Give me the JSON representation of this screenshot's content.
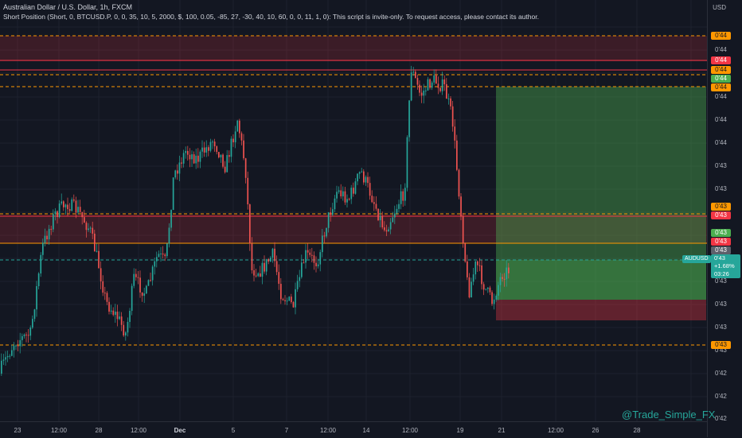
{
  "header": {
    "title": "Australian Dollar / U.S. Dollar, 1h, FXCM",
    "strategy": "Short Position (Short, 0, BTCUSD.P, 0, 0, 35, 10, 5, 2000, $, 100, 0.05, -85, 27, -30, 40, 10, 60, 0, 0, 11, 1, 0): This script is invite-only. To request access, please contact its author."
  },
  "price_axis": {
    "currency": "USD",
    "ticks": [
      "0'44",
      "0'44",
      "0'44",
      "0'44",
      "0'43",
      "0'43",
      "0'43",
      "0'43",
      "0'43",
      "0'43",
      "0'42",
      "0'42",
      "0'42"
    ],
    "tags": [
      {
        "text": "0'44",
        "bg": "#ff9800",
        "fg": "#131722"
      },
      {
        "text": "0'44",
        "bg": "#f23645",
        "fg": "#ffffff"
      },
      {
        "text": "0'44",
        "bg": "#ff9800",
        "fg": "#131722"
      },
      {
        "text": "0'44",
        "bg": "#4caf50",
        "fg": "#ffffff"
      },
      {
        "text": "0'44",
        "bg": "#ff9800",
        "fg": "#131722"
      },
      {
        "text": "0'43",
        "bg": "#ff9800",
        "fg": "#131722"
      },
      {
        "text": "0'43",
        "bg": "#f23645",
        "fg": "#ffffff"
      },
      {
        "text": "0'43",
        "bg": "#4caf50",
        "fg": "#ffffff"
      },
      {
        "text": "0'43",
        "bg": "#f23645",
        "fg": "#ffffff"
      },
      {
        "text": "0'43",
        "bg": "#5d606b",
        "fg": "#ffffff"
      },
      {
        "text": "0'43",
        "bg": "#ff9800",
        "fg": "#131722"
      }
    ]
  },
  "last_price": {
    "symbol": "AUDUSD",
    "price": "0'43",
    "change": "+1.68%",
    "countdown": "03:26"
  },
  "time_axis": [
    "23",
    "12:00",
    "28",
    "12:00",
    "Dec",
    "5",
    "7",
    "12:00",
    "14",
    "12:00",
    "19",
    "21",
    "12:00",
    "26",
    "28"
  ],
  "watermark": "@Trade_Simple_FX",
  "colors": {
    "background": "#131722",
    "up": "#26a69a",
    "down": "#ef5350",
    "target_zone": "#4caf50",
    "stop_zone": "#f23645",
    "dashed_level": "#ff9800",
    "resistance": "#f23645"
  }
}
